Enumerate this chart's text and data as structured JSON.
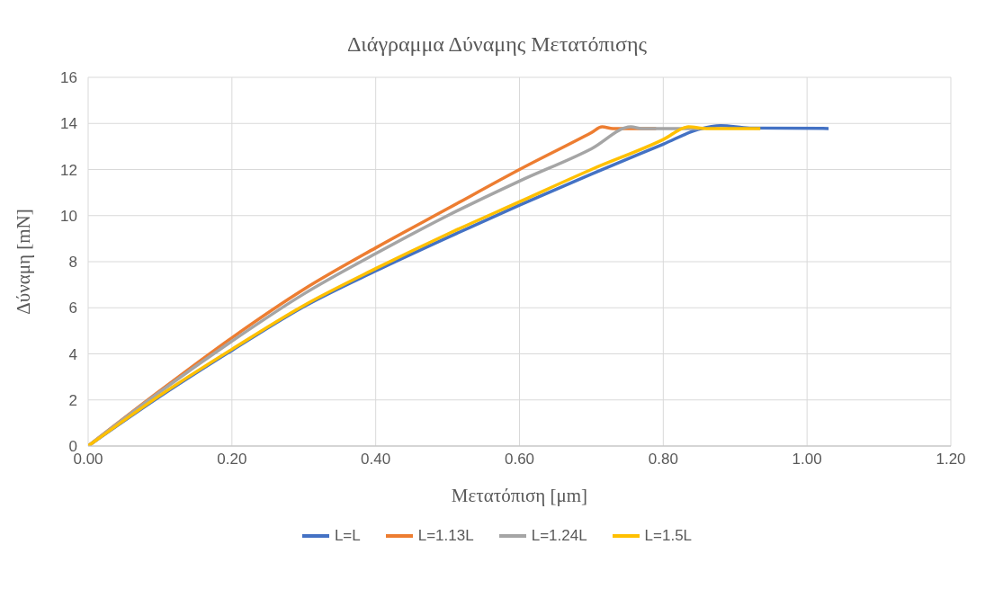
{
  "chart_data": {
    "type": "line",
    "title": "Διάγραμμα Δύναμης Μετατόπισης",
    "xlabel": "Μετατόπιση [μm]",
    "ylabel": "Δύναμη [mN]",
    "xlim": [
      0,
      1.2
    ],
    "xticks": [
      {
        "value": 0,
        "label": "0.00"
      },
      {
        "value": 0.2,
        "label": "0.20"
      },
      {
        "value": 0.4,
        "label": "0.40"
      },
      {
        "value": 0.6,
        "label": "0.60"
      },
      {
        "value": 0.8,
        "label": "0.80"
      },
      {
        "value": 1.0,
        "label": "1.00"
      },
      {
        "value": 1.2,
        "label": "1.20"
      }
    ],
    "ylim": [
      0,
      16
    ],
    "yticks": [
      0,
      2,
      4,
      6,
      8,
      10,
      12,
      14,
      16
    ],
    "grid": true,
    "legend": "bottom",
    "marker": "none",
    "line_style": "solid",
    "series": [
      {
        "name": "L=L",
        "color": "#4472c4",
        "x": [
          0,
          0.1,
          0.2,
          0.3,
          0.4,
          0.5,
          0.6,
          0.7,
          0.8,
          0.85,
          0.88,
          0.92,
          1.03
        ],
        "values": [
          0,
          2.15,
          4.15,
          6.05,
          7.6,
          9.05,
          10.45,
          11.8,
          13.1,
          13.75,
          13.9,
          13.8,
          13.78
        ]
      },
      {
        "name": "L=1.13L",
        "color": "#ed7d31",
        "x": [
          0,
          0.1,
          0.2,
          0.3,
          0.4,
          0.5,
          0.6,
          0.7,
          0.715,
          0.73,
          0.79
        ],
        "values": [
          0,
          2.4,
          4.7,
          6.8,
          8.6,
          10.3,
          12.0,
          13.6,
          13.85,
          13.78,
          13.78
        ]
      },
      {
        "name": "L=1.24L",
        "color": "#a5a5a5",
        "x": [
          0,
          0.1,
          0.2,
          0.3,
          0.4,
          0.5,
          0.6,
          0.7,
          0.755,
          0.77,
          0.85
        ],
        "values": [
          0,
          2.35,
          4.55,
          6.6,
          8.35,
          10.0,
          11.5,
          12.9,
          13.85,
          13.78,
          13.78
        ]
      },
      {
        "name": "L=1.5L",
        "color": "#ffc000",
        "x": [
          0,
          0.1,
          0.2,
          0.3,
          0.4,
          0.5,
          0.6,
          0.7,
          0.8,
          0.835,
          0.86,
          0.935
        ],
        "values": [
          0,
          2.2,
          4.2,
          6.1,
          7.7,
          9.2,
          10.6,
          12.0,
          13.3,
          13.85,
          13.78,
          13.78
        ]
      }
    ]
  }
}
